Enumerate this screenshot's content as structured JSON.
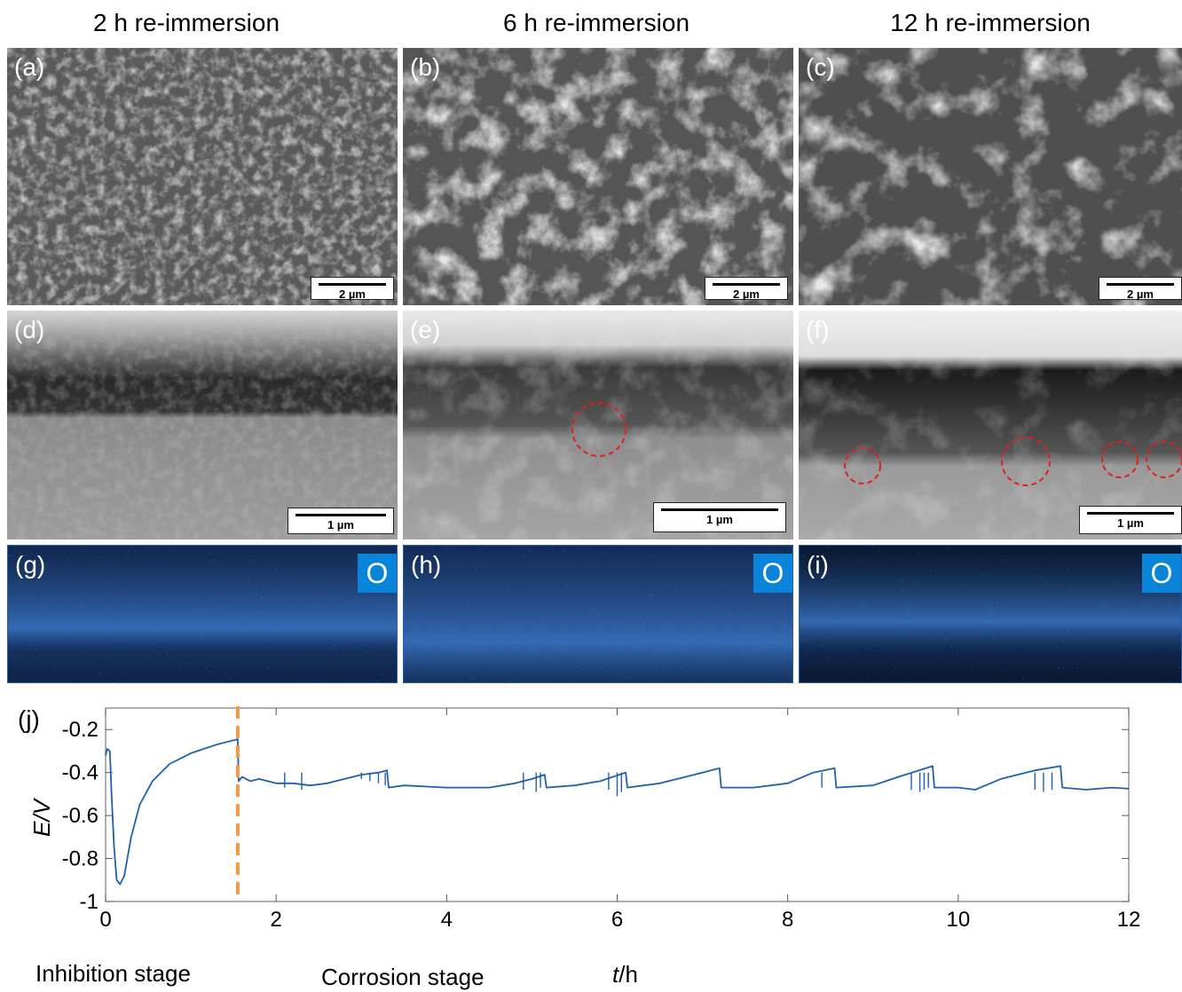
{
  "columns": [
    "2 h re-immersion",
    "6 h re-immersion",
    "12 h re-immersion"
  ],
  "panels": {
    "a": {
      "label": "(a)",
      "scale": "2 µm"
    },
    "b": {
      "label": "(b)",
      "scale": "2 µm"
    },
    "c": {
      "label": "(c)",
      "scale": "2 µm"
    },
    "d": {
      "label": "(d)",
      "scale": "1 µm"
    },
    "e": {
      "label": "(e)",
      "scale": "1 µm"
    },
    "f": {
      "label": "(f)",
      "scale": "1 µm"
    },
    "g": {
      "label": "(g)",
      "element": "O"
    },
    "h": {
      "label": "(h)",
      "element": "O"
    },
    "i": {
      "label": "(i)",
      "element": "O"
    }
  },
  "colors": {
    "trace": "#1f5fad",
    "divider": "#f39a4a",
    "eds_badge": "#0a84d8",
    "marker_circle": "#e02020"
  },
  "chart_data": {
    "type": "line",
    "panel_label": "(j)",
    "xlabel_italic": "t",
    "xlabel_unit": "/h",
    "ylabel": "E/V",
    "xlim": [
      0,
      12
    ],
    "ylim": [
      -1,
      -0.1
    ],
    "xticks": [
      0,
      2,
      4,
      6,
      8,
      10,
      12
    ],
    "yticks": [
      -0.2,
      -0.4,
      -0.6,
      -0.8,
      -1
    ],
    "divider_x": 1.55,
    "stage_labels": [
      "Inhibition stage",
      "Corrosion stage"
    ],
    "series": [
      {
        "points": [
          [
            0,
            -0.32
          ],
          [
            0.02,
            -0.29
          ],
          [
            0.05,
            -0.3
          ],
          [
            0.07,
            -0.5
          ],
          [
            0.1,
            -0.75
          ],
          [
            0.13,
            -0.9
          ],
          [
            0.17,
            -0.92
          ],
          [
            0.22,
            -0.88
          ],
          [
            0.3,
            -0.7
          ],
          [
            0.4,
            -0.55
          ],
          [
            0.55,
            -0.44
          ],
          [
            0.75,
            -0.36
          ],
          [
            1.0,
            -0.31
          ],
          [
            1.3,
            -0.27
          ],
          [
            1.55,
            -0.245
          ],
          [
            1.56,
            -0.44
          ],
          [
            1.6,
            -0.42
          ],
          [
            1.7,
            -0.44
          ],
          [
            1.8,
            -0.43
          ],
          [
            2.0,
            -0.45
          ],
          [
            2.2,
            -0.45
          ],
          [
            2.4,
            -0.46
          ],
          [
            2.6,
            -0.45
          ],
          [
            2.8,
            -0.43
          ],
          [
            3.0,
            -0.41
          ],
          [
            3.2,
            -0.4
          ],
          [
            3.3,
            -0.39
          ],
          [
            3.32,
            -0.47
          ],
          [
            3.5,
            -0.46
          ],
          [
            4.0,
            -0.47
          ],
          [
            4.5,
            -0.47
          ],
          [
            4.8,
            -0.45
          ],
          [
            5.0,
            -0.43
          ],
          [
            5.15,
            -0.41
          ],
          [
            5.17,
            -0.47
          ],
          [
            5.5,
            -0.46
          ],
          [
            5.8,
            -0.44
          ],
          [
            6.1,
            -0.4
          ],
          [
            6.12,
            -0.47
          ],
          [
            6.5,
            -0.45
          ],
          [
            7.0,
            -0.4
          ],
          [
            7.2,
            -0.38
          ],
          [
            7.22,
            -0.47
          ],
          [
            7.6,
            -0.47
          ],
          [
            8.0,
            -0.45
          ],
          [
            8.3,
            -0.4
          ],
          [
            8.55,
            -0.38
          ],
          [
            8.57,
            -0.47
          ],
          [
            9.0,
            -0.46
          ],
          [
            9.3,
            -0.42
          ],
          [
            9.7,
            -0.37
          ],
          [
            9.72,
            -0.47
          ],
          [
            10.0,
            -0.47
          ],
          [
            10.2,
            -0.48
          ],
          [
            10.5,
            -0.43
          ],
          [
            10.9,
            -0.39
          ],
          [
            11.2,
            -0.37
          ],
          [
            11.22,
            -0.47
          ],
          [
            11.5,
            -0.48
          ],
          [
            11.8,
            -0.47
          ],
          [
            12.0,
            -0.475
          ]
        ],
        "spikes": [
          [
            2.1,
            -0.47
          ],
          [
            2.3,
            -0.48
          ],
          [
            3.0,
            -0.43
          ],
          [
            3.1,
            -0.44
          ],
          [
            3.2,
            -0.45
          ],
          [
            3.28,
            -0.46
          ],
          [
            4.9,
            -0.48
          ],
          [
            5.05,
            -0.49
          ],
          [
            5.1,
            -0.47
          ],
          [
            5.9,
            -0.48
          ],
          [
            6.0,
            -0.51
          ],
          [
            6.05,
            -0.49
          ],
          [
            8.4,
            -0.47
          ],
          [
            9.45,
            -0.48
          ],
          [
            9.55,
            -0.49
          ],
          [
            9.6,
            -0.48
          ],
          [
            9.65,
            -0.47
          ],
          [
            10.9,
            -0.48
          ],
          [
            11.0,
            -0.49
          ],
          [
            11.1,
            -0.48
          ]
        ]
      }
    ]
  }
}
